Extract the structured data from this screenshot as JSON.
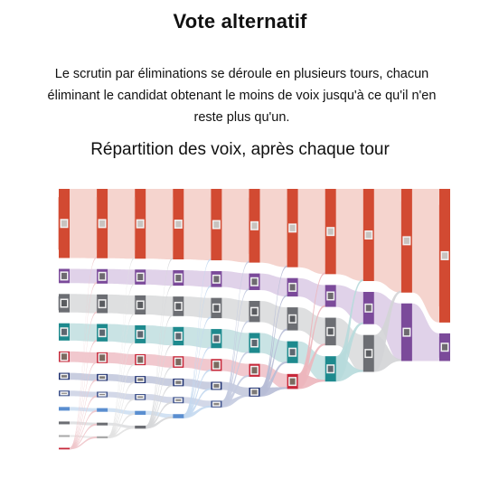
{
  "page": {
    "title": "Vote alternatif",
    "intro": "Le scrutin par éliminations se déroule en plusieurs tours, chacun éliminant le candidat obtenant le moins de voix jusqu'à ce qu'il n'en reste plus qu'un.",
    "subtitle": "Répartition des voix, après chaque tour"
  },
  "chart_data": {
    "type": "sankey",
    "title": "Répartition des voix, après chaque tour",
    "rounds": 10,
    "candidates": [
      {
        "color": "#d24a32",
        "fill": "#f1c5bd",
        "photo": "#c8c3bf"
      },
      {
        "color": "#7b4a9a",
        "fill": "#d6c3e2",
        "photo": "#6e6a70"
      },
      {
        "color": "#6c6e73",
        "fill": "#d3d4d6",
        "photo": "#5a5c60"
      },
      {
        "color": "#1e8a8e",
        "fill": "#b7dadb",
        "photo": "#5d6770"
      },
      {
        "color": "#c7283a",
        "fill": "#ecb6bd",
        "photo": "#7b6a60"
      },
      {
        "color": "#1d2f70",
        "fill": "#b7bdd6",
        "photo": "#7d7a78"
      },
      {
        "color": "#3b4f8a",
        "fill": "#c4cbe0",
        "photo": "#8a8682"
      },
      {
        "color": "#5a8ed0",
        "fill": "#c3d8ef",
        "photo": "#9a9a9a"
      },
      {
        "color": "#6c6e73",
        "fill": "#d6d7d9",
        "photo": "#aaaaaa"
      },
      {
        "color": "#a9a9a9",
        "fill": "#e2e2e2",
        "photo": "#bbbbbb"
      },
      {
        "color": "#c7283a",
        "fill": "#f0c6cb",
        "photo": "#bbbbbb"
      }
    ],
    "shares": [
      [
        30.0,
        6.2,
        8.0,
        7.5,
        4.6,
        3.0,
        2.4,
        1.6,
        1.2,
        0.8,
        0.7
      ],
      [
        30.1,
        6.3,
        8.1,
        7.6,
        4.7,
        3.0,
        2.4,
        1.6,
        1.2,
        0.9,
        0
      ],
      [
        30.3,
        6.5,
        8.3,
        7.8,
        4.8,
        3.1,
        2.6,
        1.7,
        1.3,
        0,
        0
      ],
      [
        30.6,
        6.7,
        8.5,
        8.0,
        5.0,
        3.3,
        2.7,
        1.8,
        0,
        0,
        0
      ],
      [
        31.0,
        6.9,
        8.8,
        8.3,
        5.2,
        3.5,
        2.9,
        0,
        0,
        0,
        0
      ],
      [
        32.0,
        7.2,
        9.2,
        8.7,
        5.6,
        3.9,
        0,
        0,
        0,
        0,
        0
      ],
      [
        34.0,
        8.0,
        10.0,
        9.5,
        6.5,
        0,
        0,
        0,
        0,
        0,
        0
      ],
      [
        37.0,
        9.5,
        12.0,
        11.0,
        0,
        0,
        0,
        0,
        0,
        0,
        0
      ],
      [
        40.0,
        14.0,
        16.0,
        0,
        0,
        0,
        0,
        0,
        0,
        0,
        0
      ],
      [
        45.0,
        25.0,
        0,
        0,
        0,
        0,
        0,
        0,
        0,
        0,
        0
      ],
      [
        58.0,
        12.0,
        0,
        0,
        0,
        0,
        0,
        0,
        0,
        0,
        0
      ]
    ]
  }
}
